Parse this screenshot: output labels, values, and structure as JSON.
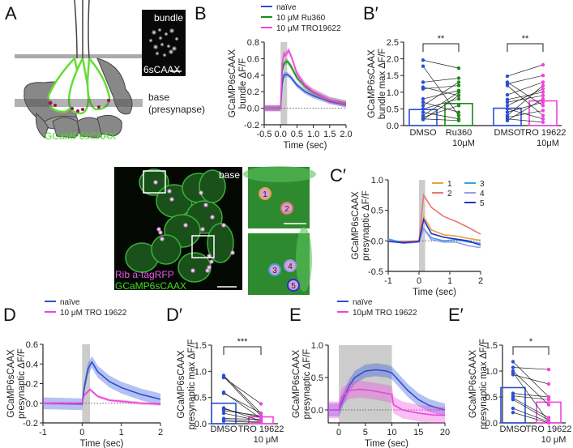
{
  "panel_labels": {
    "A": "A",
    "B": "B",
    "Bp": "B′",
    "C": "C",
    "Cp": "C′",
    "D": "D",
    "Dp": "D′",
    "E": "E",
    "Ep": "E′"
  },
  "panel_A": {
    "indicator_label": "GCaMP6sCAAX",
    "base_label": "base",
    "presynapse_label": "(presynapse)",
    "bundle_image_title": "bundle",
    "bundle_image_caption": "6sCAAX"
  },
  "panel_C": {
    "image_title": "base",
    "channel_red": "Rib a-tagRFP",
    "channel_green": "GCaMP6sCAAX",
    "roi_labels": [
      "1",
      "2",
      "3",
      "4",
      "5"
    ],
    "roi_colors": [
      "#e8a33a",
      "#e8776e",
      "#3fa0e0",
      "#9a9ae8",
      "#2233cc"
    ]
  },
  "colors": {
    "naive": "#2a4fd6",
    "ru360": "#1a8a1a",
    "tro": "#ee44dd",
    "stimulus": "#cccccc"
  },
  "chart_data": [
    {
      "id": "B",
      "type": "line",
      "xlabel": "Time (sec)",
      "ylabel": [
        "GCaMP6sCAAX",
        "bundle ΔF/F"
      ],
      "xlim": [
        -0.5,
        2.0
      ],
      "ylim": [
        -0.2,
        0.8
      ],
      "xticks": [
        "-0.5",
        "0.0",
        "0.5",
        "1.0",
        "1.5",
        "2.0"
      ],
      "yticks": [
        "-0.2",
        "0.0",
        "0.2",
        "0.4",
        "0.6",
        "0.8"
      ],
      "stimulus": [
        0,
        0.2
      ],
      "zero_line": true,
      "legend": "top",
      "series": [
        {
          "name": "naïve",
          "color": "#2a4fd6",
          "sem": 0.03,
          "points": [
            [
              -0.5,
              0
            ],
            [
              0,
              0
            ],
            [
              0.05,
              0.3
            ],
            [
              0.1,
              0.4
            ],
            [
              0.2,
              0.41
            ],
            [
              0.3,
              0.38
            ],
            [
              0.5,
              0.28
            ],
            [
              0.75,
              0.2
            ],
            [
              1,
              0.15
            ],
            [
              1.5,
              0.08
            ],
            [
              2,
              0.04
            ]
          ]
        },
        {
          "name": "10 μM Ru360",
          "color": "#1a8a1a",
          "sem": 0.035,
          "points": [
            [
              -0.5,
              0
            ],
            [
              0,
              0
            ],
            [
              0.05,
              0.45
            ],
            [
              0.1,
              0.54
            ],
            [
              0.2,
              0.57
            ],
            [
              0.3,
              0.52
            ],
            [
              0.5,
              0.37
            ],
            [
              0.75,
              0.26
            ],
            [
              1,
              0.19
            ],
            [
              1.5,
              0.1
            ],
            [
              2,
              0.06
            ]
          ]
        },
        {
          "name": "10 μM TRO19622",
          "color": "#ee44dd",
          "sem": 0.04,
          "points": [
            [
              -0.5,
              0
            ],
            [
              0,
              0
            ],
            [
              0.05,
              0.55
            ],
            [
              0.1,
              0.66
            ],
            [
              0.15,
              0.64
            ],
            [
              0.25,
              0.7
            ],
            [
              0.35,
              0.6
            ],
            [
              0.5,
              0.42
            ],
            [
              0.75,
              0.28
            ],
            [
              1,
              0.2
            ],
            [
              1.5,
              0.1
            ],
            [
              2,
              0.05
            ]
          ]
        }
      ]
    },
    {
      "id": "Bp",
      "type": "bar",
      "ylabel": [
        "GCaMP6sCAAX",
        "bundle max ΔF/F"
      ],
      "ylim": [
        0,
        2.5
      ],
      "yticks": [
        "0.0",
        "0.5",
        "1.0",
        "1.5",
        "2.0",
        "2.5"
      ],
      "categories": [
        [
          "DMSO",
          ""
        ],
        [
          "Ru360",
          "10μM"
        ],
        [
          "DMSO",
          ""
        ],
        [
          "TRO 19622",
          "10μM"
        ]
      ],
      "bar_colors": [
        "#2a4fd6",
        "#1a8a1a",
        "#2a4fd6",
        "#ee44dd"
      ],
      "values": [
        0.48,
        0.66,
        0.52,
        0.74
      ],
      "pairs": [
        {
          "from": 0,
          "to": 1,
          "points": [
            [
              1.96,
              1.72
            ],
            [
              1.78,
              0.3
            ],
            [
              1.3,
              1.42
            ],
            [
              1.15,
              0.9
            ],
            [
              1.1,
              1.2
            ],
            [
              0.8,
              1.05
            ],
            [
              0.7,
              0.4
            ],
            [
              0.6,
              1.3
            ],
            [
              0.5,
              0.8
            ],
            [
              0.4,
              0.2
            ],
            [
              0.3,
              1.0
            ],
            [
              0.25,
              0.6
            ],
            [
              0.2,
              0.15
            ],
            [
              0.18,
              0.9
            ]
          ]
        },
        {
          "from": 2,
          "to": 3,
          "points": [
            [
              1.48,
              1.82
            ],
            [
              1.3,
              0.6
            ],
            [
              1.25,
              1.5
            ],
            [
              1.2,
              0.3
            ],
            [
              0.92,
              1.3
            ],
            [
              0.78,
              1.0
            ],
            [
              0.7,
              0.9
            ],
            [
              0.6,
              1.1
            ],
            [
              0.5,
              0.2
            ],
            [
              0.4,
              0.7
            ],
            [
              0.3,
              1.2
            ],
            [
              0.25,
              0.45
            ],
            [
              0.2,
              0.1
            ],
            [
              0.15,
              0.8
            ]
          ]
        }
      ],
      "significance": [
        {
          "from": 0,
          "to": 1,
          "label": "**"
        },
        {
          "from": 2,
          "to": 3,
          "label": "**"
        }
      ]
    },
    {
      "id": "Cp",
      "type": "line",
      "xlabel": "Time (sec)",
      "ylabel": [
        "GCaMP6sCAAX",
        "presynaptic ΔF/F"
      ],
      "xlim": [
        -1,
        2
      ],
      "ylim": [
        -0.5,
        1.0
      ],
      "xticks": [
        "-1",
        "0",
        "1",
        "2"
      ],
      "yticks": [
        "-0.5",
        "0.0",
        "0.5",
        "1.0"
      ],
      "stimulus": [
        0,
        0.2
      ],
      "zero_line": true,
      "legend": "top-right",
      "series": [
        {
          "name": "1",
          "color": "#e8a33a",
          "points": [
            [
              -1,
              0.01
            ],
            [
              -0.5,
              -0.02
            ],
            [
              0,
              0
            ],
            [
              0.15,
              0.4
            ],
            [
              0.4,
              0.18
            ],
            [
              0.8,
              0.1
            ],
            [
              1.2,
              0.08
            ],
            [
              1.6,
              0.04
            ],
            [
              2,
              0.01
            ]
          ]
        },
        {
          "name": "2",
          "color": "#e8776e",
          "points": [
            [
              -1,
              0
            ],
            [
              -0.5,
              -0.01
            ],
            [
              0,
              0
            ],
            [
              0.15,
              0.75
            ],
            [
              0.4,
              0.55
            ],
            [
              0.8,
              0.4
            ],
            [
              1.2,
              0.32
            ],
            [
              1.6,
              0.22
            ],
            [
              2,
              0.11
            ]
          ]
        },
        {
          "name": "3",
          "color": "#3fa0e0",
          "points": [
            [
              -1,
              0.03
            ],
            [
              -0.5,
              -0.03
            ],
            [
              0,
              -0.01
            ],
            [
              0.12,
              0.22
            ],
            [
              0.4,
              0.05
            ],
            [
              0.8,
              0.0
            ],
            [
              1.2,
              0.02
            ],
            [
              1.6,
              -0.02
            ],
            [
              2,
              -0.04
            ]
          ]
        },
        {
          "name": "4",
          "color": "#9a9ae8",
          "points": [
            [
              -1,
              0.0
            ],
            [
              -0.5,
              -0.04
            ],
            [
              0,
              -0.02
            ],
            [
              0.15,
              0.2
            ],
            [
              0.4,
              0.02
            ],
            [
              0.8,
              -0.02
            ],
            [
              1.2,
              -0.02
            ],
            [
              1.6,
              -0.08
            ],
            [
              2,
              -0.11
            ]
          ]
        },
        {
          "name": "5",
          "color": "#2233cc",
          "points": [
            [
              -1,
              -0.01
            ],
            [
              -0.5,
              -0.03
            ],
            [
              0,
              -0.01
            ],
            [
              0.15,
              0.35
            ],
            [
              0.4,
              0.12
            ],
            [
              0.8,
              0.06
            ],
            [
              1.2,
              0.03
            ],
            [
              1.6,
              0.0
            ],
            [
              2,
              -0.07
            ]
          ]
        }
      ]
    },
    {
      "id": "D",
      "type": "line",
      "xlabel": "Time (sec)",
      "ylabel": [
        "GCaMP6sCAAX",
        "presynaptic ΔF/F"
      ],
      "xlim": [
        -1,
        2
      ],
      "ylim": [
        -0.2,
        0.6
      ],
      "xticks": [
        "-1",
        "0",
        "1",
        "2"
      ],
      "yticks": [
        "-0.2",
        "0.0",
        "0.2",
        "0.4",
        "0.6"
      ],
      "stimulus": [
        0,
        0.2
      ],
      "zero_line": true,
      "legend": "top",
      "series": [
        {
          "name": "naïve",
          "color": "#2a4fd6",
          "sem": 0.06,
          "points": [
            [
              -1,
              0
            ],
            [
              0,
              -0.01
            ],
            [
              0.05,
              0.15
            ],
            [
              0.15,
              0.35
            ],
            [
              0.25,
              0.42
            ],
            [
              0.4,
              0.32
            ],
            [
              0.7,
              0.22
            ],
            [
              1,
              0.16
            ],
            [
              1.5,
              0.09
            ],
            [
              2,
              0.04
            ]
          ]
        },
        {
          "name": "10 μM TRO 19622",
          "color": "#ee44dd",
          "sem": 0.015,
          "points": [
            [
              -1,
              0
            ],
            [
              0,
              0
            ],
            [
              0.05,
              0.08
            ],
            [
              0.2,
              0.14
            ],
            [
              0.4,
              0.07
            ],
            [
              0.7,
              0.03
            ],
            [
              1,
              0.02
            ],
            [
              1.5,
              0.0
            ],
            [
              2,
              -0.01
            ]
          ]
        }
      ]
    },
    {
      "id": "Dp",
      "type": "bar",
      "ylabel": [
        "GCaMP6sCAAX",
        "presynaptic max ΔF/F"
      ],
      "ylim": [
        0,
        1.5
      ],
      "yticks": [
        "0.0",
        "0.5",
        "1.0",
        "1.5"
      ],
      "categories": [
        [
          "DMSO",
          ""
        ],
        [
          "TRO 19622",
          "10 μM"
        ]
      ],
      "bar_colors": [
        "#2a4fd6",
        "#ee44dd"
      ],
      "values": [
        0.39,
        0.13
      ],
      "pairs": [
        {
          "from": 0,
          "to": 1,
          "points": [
            [
              0.92,
              0.2
            ],
            [
              0.9,
              0.15
            ],
            [
              0.88,
              0.38
            ],
            [
              0.6,
              0.1
            ],
            [
              0.58,
              0.2
            ],
            [
              0.3,
              0.05
            ],
            [
              0.28,
              0.12
            ],
            [
              0.25,
              0.15
            ],
            [
              0.2,
              0.05
            ],
            [
              0.1,
              0.08
            ],
            [
              0.08,
              0.03
            ],
            [
              0.05,
              0.02
            ]
          ]
        }
      ],
      "significance": [
        {
          "from": 0,
          "to": 1,
          "label": "***"
        }
      ]
    },
    {
      "id": "E",
      "type": "line",
      "xlabel": "Time (sec)",
      "ylabel": [
        "GCaMP6sCAAX",
        "presynaptic ΔF/F"
      ],
      "xlim": [
        -2,
        20
      ],
      "ylim": [
        -0.2,
        1.0
      ],
      "xticks": [
        "0",
        "5",
        "10",
        "15",
        "20"
      ],
      "xtick_values": [
        0,
        5,
        10,
        15,
        20
      ],
      "yticks": [
        "0.0",
        "0.5",
        "1.0"
      ],
      "ytick_values": [
        0,
        0.5,
        1.0
      ],
      "stimulus": [
        0,
        10
      ],
      "zero_line": true,
      "legend": "top",
      "series": [
        {
          "name": "naïve",
          "color": "#2a4fd6",
          "sem": 0.1,
          "points": [
            [
              -2,
              0
            ],
            [
              0,
              0
            ],
            [
              1,
              0.2
            ],
            [
              2,
              0.38
            ],
            [
              3,
              0.5
            ],
            [
              5,
              0.6
            ],
            [
              7,
              0.62
            ],
            [
              9,
              0.6
            ],
            [
              10,
              0.57
            ],
            [
              11,
              0.48
            ],
            [
              13,
              0.3
            ],
            [
              15,
              0.16
            ],
            [
              17,
              0.07
            ],
            [
              19,
              0.02
            ],
            [
              20,
              0
            ]
          ]
        },
        {
          "name": "10μM TRO 19622",
          "color": "#ee44dd",
          "sem": 0.13,
          "points": [
            [
              -2,
              0
            ],
            [
              0,
              0
            ],
            [
              0.5,
              0.2
            ],
            [
              2,
              0.3
            ],
            [
              4,
              0.32
            ],
            [
              6,
              0.3
            ],
            [
              8,
              0.27
            ],
            [
              10,
              0.24
            ],
            [
              10.3,
              0.08
            ],
            [
              12,
              0.0
            ],
            [
              15,
              -0.05
            ],
            [
              18,
              -0.08
            ],
            [
              20,
              -0.08
            ]
          ]
        }
      ]
    },
    {
      "id": "Ep",
      "type": "bar",
      "ylabel": [
        "GCaMP6sCAAX",
        "presynaptic max ΔF/F"
      ],
      "ylim": [
        0,
        1.5
      ],
      "yticks": [
        "0.0",
        "0.5",
        "1.0",
        "1.5"
      ],
      "categories": [
        [
          "DMSO",
          ""
        ],
        [
          "TRO 19622",
          "10 μM"
        ]
      ],
      "bar_colors": [
        "#2a4fd6",
        "#ee44dd"
      ],
      "values": [
        0.68,
        0.4
      ],
      "pairs": [
        {
          "from": 0,
          "to": 1,
          "points": [
            [
              1.18,
              0.5
            ],
            [
              1.07,
              1.03
            ],
            [
              1.0,
              0.35
            ],
            [
              0.97,
              0.02
            ],
            [
              0.93,
              0.75
            ],
            [
              0.57,
              0.5
            ],
            [
              0.52,
              0.45
            ],
            [
              0.48,
              0.1
            ],
            [
              0.45,
              0.05
            ],
            [
              0.28,
              0.02
            ],
            [
              0.2,
              0.0
            ]
          ]
        }
      ],
      "significance": [
        {
          "from": 0,
          "to": 1,
          "label": "*"
        }
      ]
    }
  ]
}
